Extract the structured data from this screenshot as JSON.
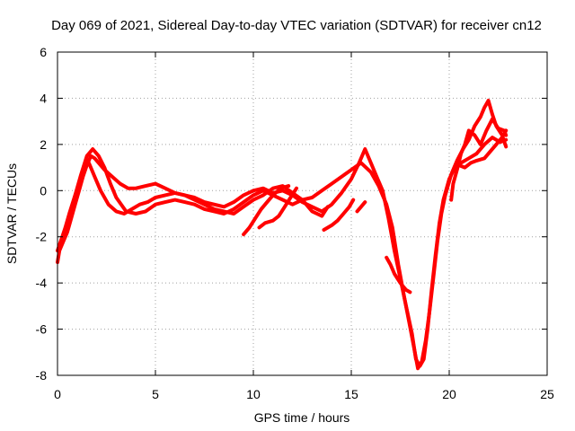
{
  "chart_data": {
    "type": "scatter",
    "title": "Day 069 of 2021, Sidereal Day-to-day VTEC variation (SDTVAR) for receiver cn12",
    "xlabel": "GPS time / hours",
    "ylabel": "SDTVAR / TECUs",
    "xlim": [
      0,
      25
    ],
    "ylim": [
      -8,
      6
    ],
    "xticks": [
      0,
      5,
      10,
      15,
      20,
      25
    ],
    "yticks": [
      -8,
      -6,
      -4,
      -2,
      0,
      2,
      4,
      6
    ],
    "grid": true,
    "marker": "plus",
    "color": "#ff0000",
    "series": [
      {
        "values": [
          [
            0.0,
            -3.1
          ],
          [
            0.1,
            -2.6
          ],
          [
            0.3,
            -2.2
          ],
          [
            0.5,
            -1.8
          ],
          [
            0.7,
            -1.2
          ],
          [
            0.9,
            -0.6
          ],
          [
            1.1,
            0.0
          ],
          [
            1.3,
            0.6
          ],
          [
            1.5,
            1.1
          ],
          [
            1.7,
            1.5
          ],
          [
            1.9,
            1.4
          ],
          [
            2.1,
            1.2
          ],
          [
            2.4,
            0.9
          ],
          [
            2.8,
            0.6
          ],
          [
            3.2,
            0.3
          ],
          [
            3.6,
            0.1
          ],
          [
            4.0,
            0.1
          ],
          [
            4.5,
            0.2
          ],
          [
            5.0,
            0.3
          ],
          [
            5.5,
            0.1
          ],
          [
            6.0,
            -0.1
          ],
          [
            6.5,
            -0.2
          ],
          [
            7.0,
            -0.3
          ],
          [
            7.5,
            -0.5
          ],
          [
            8.0,
            -0.6
          ],
          [
            8.5,
            -0.7
          ],
          [
            9.0,
            -0.5
          ],
          [
            9.5,
            -0.2
          ],
          [
            10.0,
            0.0
          ],
          [
            10.5,
            0.1
          ],
          [
            11.0,
            -0.1
          ],
          [
            11.5,
            0.0
          ],
          [
            12.0,
            -0.2
          ],
          [
            12.5,
            -0.5
          ],
          [
            13.0,
            -0.7
          ],
          [
            13.5,
            -0.9
          ],
          [
            14.0,
            -0.6
          ],
          [
            14.5,
            -0.1
          ],
          [
            15.0,
            0.5
          ],
          [
            15.4,
            1.2
          ],
          [
            15.7,
            1.8
          ],
          [
            16.0,
            1.2
          ],
          [
            16.3,
            0.6
          ],
          [
            16.6,
            0.0
          ],
          [
            16.9,
            -1.2
          ],
          [
            17.2,
            -2.6
          ],
          [
            17.5,
            -3.8
          ],
          [
            17.8,
            -5.0
          ],
          [
            18.1,
            -6.2
          ],
          [
            18.3,
            -7.3
          ],
          [
            18.5,
            -7.6
          ],
          [
            18.7,
            -7.3
          ],
          [
            18.9,
            -6.0
          ],
          [
            19.1,
            -4.3
          ],
          [
            19.3,
            -2.8
          ],
          [
            19.5,
            -1.4
          ],
          [
            19.7,
            -0.4
          ],
          [
            20.0,
            0.5
          ],
          [
            20.3,
            1.0
          ],
          [
            20.6,
            1.2
          ],
          [
            21.0,
            1.4
          ],
          [
            21.4,
            1.6
          ],
          [
            21.8,
            2.0
          ],
          [
            22.2,
            2.3
          ],
          [
            22.6,
            2.1
          ],
          [
            22.9,
            2.2
          ]
        ]
      },
      {
        "values": [
          [
            0.0,
            -2.6
          ],
          [
            0.2,
            -2.1
          ],
          [
            0.4,
            -1.6
          ],
          [
            0.6,
            -1.0
          ],
          [
            0.9,
            -0.2
          ],
          [
            1.2,
            0.7
          ],
          [
            1.5,
            1.5
          ],
          [
            1.8,
            1.8
          ],
          [
            2.1,
            1.5
          ],
          [
            2.4,
            1.0
          ],
          [
            2.7,
            0.3
          ],
          [
            3.0,
            -0.3
          ],
          [
            3.5,
            -0.9
          ],
          [
            4.0,
            -1.0
          ],
          [
            4.5,
            -0.9
          ],
          [
            5.0,
            -0.6
          ],
          [
            5.5,
            -0.5
          ],
          [
            6.0,
            -0.4
          ],
          [
            6.5,
            -0.5
          ],
          [
            7.0,
            -0.6
          ],
          [
            7.5,
            -0.8
          ],
          [
            8.0,
            -0.9
          ],
          [
            8.5,
            -1.0
          ],
          [
            9.0,
            -0.8
          ],
          [
            9.5,
            -0.5
          ],
          [
            10.0,
            -0.2
          ],
          [
            10.5,
            0.0
          ],
          [
            11.0,
            -0.2
          ],
          [
            11.5,
            -0.4
          ],
          [
            12.0,
            -0.6
          ],
          [
            12.5,
            -0.4
          ],
          [
            13.0,
            -0.3
          ],
          [
            13.5,
            0.0
          ],
          [
            14.0,
            0.3
          ],
          [
            14.5,
            0.6
          ],
          [
            15.0,
            0.9
          ],
          [
            15.5,
            1.2
          ],
          [
            16.0,
            0.8
          ],
          [
            16.4,
            0.2
          ],
          [
            16.8,
            -0.6
          ],
          [
            17.1,
            -1.6
          ],
          [
            17.4,
            -3.2
          ],
          [
            17.7,
            -4.6
          ],
          [
            18.0,
            -5.9
          ],
          [
            18.2,
            -6.8
          ],
          [
            18.4,
            -7.7
          ],
          [
            18.6,
            -7.4
          ],
          [
            18.8,
            -6.5
          ],
          [
            19.0,
            -5.2
          ],
          [
            19.2,
            -3.7
          ],
          [
            19.4,
            -2.2
          ],
          [
            19.6,
            -1.0
          ],
          [
            19.8,
            -0.2
          ],
          [
            20.1,
            0.7
          ],
          [
            20.4,
            1.3
          ],
          [
            20.7,
            1.8
          ],
          [
            21.0,
            2.2
          ],
          [
            21.3,
            2.8
          ],
          [
            21.6,
            3.2
          ],
          [
            21.8,
            3.6
          ],
          [
            22.0,
            3.9
          ],
          [
            22.2,
            3.3
          ],
          [
            22.4,
            2.8
          ],
          [
            22.7,
            2.4
          ],
          [
            22.9,
            1.9
          ]
        ]
      },
      {
        "values": [
          [
            1.6,
            1.2
          ],
          [
            1.9,
            0.6
          ],
          [
            2.2,
            0.0
          ],
          [
            2.6,
            -0.6
          ],
          [
            3.0,
            -0.9
          ],
          [
            3.4,
            -1.0
          ],
          [
            3.8,
            -0.8
          ],
          [
            4.2,
            -0.6
          ],
          [
            4.6,
            -0.5
          ],
          [
            5.0,
            -0.3
          ],
          [
            5.5,
            -0.2
          ],
          [
            6.0,
            -0.1
          ],
          [
            6.5,
            -0.2
          ],
          [
            7.0,
            -0.4
          ],
          [
            7.5,
            -0.6
          ],
          [
            8.0,
            -0.8
          ],
          [
            8.5,
            -0.9
          ],
          [
            9.0,
            -1.0
          ],
          [
            9.5,
            -0.7
          ],
          [
            10.0,
            -0.4
          ],
          [
            10.5,
            -0.2
          ],
          [
            11.0,
            0.1
          ],
          [
            11.5,
            0.2
          ],
          [
            12.0,
            -0.1
          ],
          [
            12.5,
            -0.4
          ],
          [
            13.0,
            -0.9
          ],
          [
            13.5,
            -1.1
          ],
          [
            13.8,
            -0.7
          ]
        ]
      },
      {
        "values": [
          [
            9.5,
            -1.9
          ],
          [
            9.8,
            -1.6
          ],
          [
            10.1,
            -1.2
          ],
          [
            10.4,
            -0.8
          ],
          [
            10.7,
            -0.5
          ],
          [
            11.0,
            -0.2
          ],
          [
            11.4,
            0.1
          ],
          [
            11.8,
            0.2
          ]
        ]
      },
      {
        "values": [
          [
            10.3,
            -1.6
          ],
          [
            10.6,
            -1.4
          ],
          [
            11.0,
            -1.3
          ],
          [
            11.3,
            -1.1
          ],
          [
            11.6,
            -0.7
          ],
          [
            11.9,
            -0.3
          ],
          [
            12.2,
            0.1
          ]
        ]
      },
      {
        "values": [
          [
            13.6,
            -1.7
          ],
          [
            14.0,
            -1.5
          ],
          [
            14.3,
            -1.3
          ],
          [
            14.6,
            -1.0
          ],
          [
            14.9,
            -0.7
          ],
          [
            15.1,
            -0.4
          ]
        ]
      },
      {
        "values": [
          [
            15.3,
            -0.9
          ],
          [
            15.5,
            -0.7
          ],
          [
            15.7,
            -0.5
          ]
        ]
      },
      {
        "values": [
          [
            16.8,
            -2.9
          ],
          [
            17.0,
            -3.2
          ],
          [
            17.2,
            -3.6
          ],
          [
            17.5,
            -4.0
          ],
          [
            17.8,
            -4.3
          ],
          [
            18.0,
            -4.4
          ]
        ]
      },
      {
        "values": [
          [
            20.1,
            -0.4
          ],
          [
            20.2,
            0.3
          ],
          [
            20.4,
            0.9
          ],
          [
            20.6,
            1.6
          ],
          [
            20.8,
            2.0
          ],
          [
            21.0,
            2.6
          ],
          [
            21.3,
            2.4
          ],
          [
            21.6,
            2.0
          ],
          [
            21.9,
            2.6
          ],
          [
            22.2,
            3.1
          ],
          [
            22.5,
            2.7
          ],
          [
            22.8,
            2.6
          ],
          [
            22.9,
            2.4
          ]
        ]
      },
      {
        "values": [
          [
            20.5,
            1.1
          ],
          [
            20.8,
            1.0
          ],
          [
            21.1,
            1.2
          ],
          [
            21.4,
            1.3
          ],
          [
            21.8,
            1.4
          ],
          [
            22.1,
            1.7
          ],
          [
            22.4,
            2.0
          ],
          [
            22.7,
            2.3
          ],
          [
            22.9,
            2.6
          ]
        ]
      }
    ]
  }
}
